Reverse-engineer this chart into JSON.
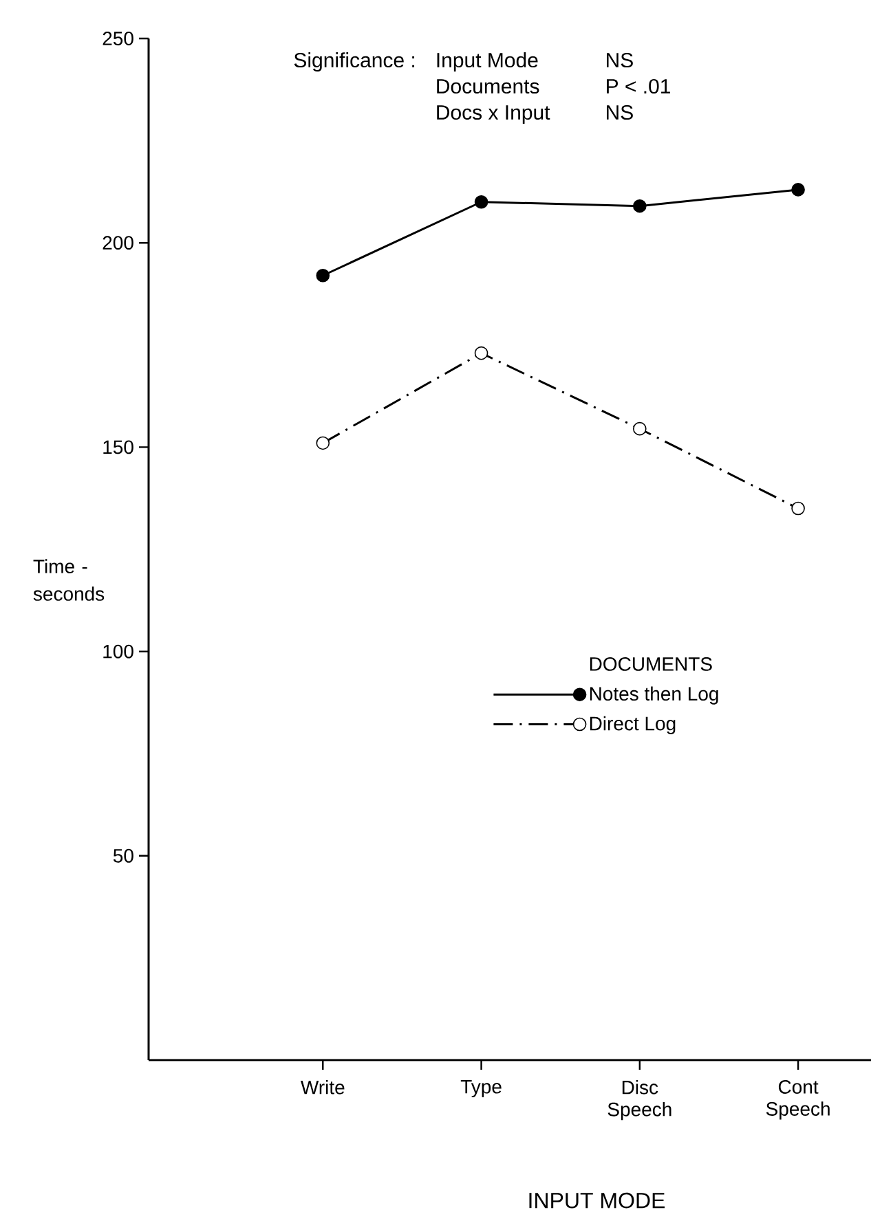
{
  "chart_data": {
    "type": "line",
    "categories": [
      "Write",
      "Type",
      "Disc Speech",
      "Cont Speech"
    ],
    "series": [
      {
        "name": "Notes then Log",
        "color": "#000000",
        "values": [
          192,
          210,
          209,
          213
        ],
        "line_style": "solid"
      },
      {
        "name": "Direct Log",
        "color": "#000000",
        "values": [
          151,
          173,
          154.5,
          135
        ],
        "line_style": "dashed"
      }
    ],
    "marker": "circle",
    "ylim": [
      0,
      250
    ],
    "yticks": [
      50,
      100,
      150,
      200,
      250
    ],
    "ylabel": "Time - seconds",
    "xlabel": "INPUT MODE",
    "legend": "right",
    "legend_title": "DOCUMENTS",
    "annotations": [
      "Significance :",
      "Input Mode",
      "NS",
      "Documents",
      "P < .01",
      "Docs x Input",
      "NS"
    ]
  }
}
